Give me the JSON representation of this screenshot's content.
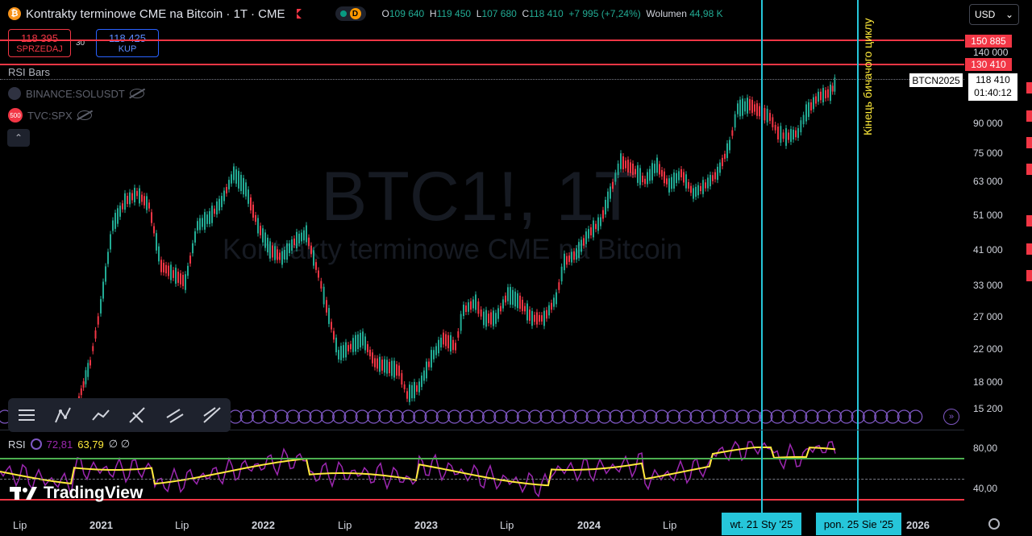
{
  "header": {
    "coin_icon": "bitcoin-icon",
    "title": "Kontrakty terminowe CME na Bitcoin · 1T · CME",
    "badge_d": "D",
    "ohlc": {
      "o_label": "O",
      "o_value": "109 640",
      "h_label": "H",
      "h_value": "119 450",
      "l_label": "L",
      "l_value": "107 680",
      "c_label": "C",
      "c_value": "118 410",
      "change": "+7 995 (+7,24%)",
      "volume_label": "Wolumen",
      "volume_value": "44,98 K"
    },
    "currency": "USD"
  },
  "trade": {
    "sell_price": "118 395",
    "sell_label": "SPRZEDAJ",
    "spread": "30",
    "buy_price": "118 425",
    "buy_label": "KUP"
  },
  "legend": {
    "indicator": "RSI Bars",
    "compare1": "BINANCE:SOLUSDT",
    "compare2_badge": "500",
    "compare2": "TVC:SPX"
  },
  "watermark": {
    "symbol": "BTC1!, 1T",
    "name": "Kontrakty terminowe CME na Bitcoin"
  },
  "price_axis": {
    "labels": [
      "140 000",
      "90 000",
      "75 000",
      "63 000",
      "51 000",
      "41 000",
      "33 000",
      "27 000",
      "22 000",
      "18 000",
      "15 200"
    ],
    "red_tags": [
      "150 885",
      "130 410"
    ],
    "symbol_tag": "BTCN2025",
    "price_tag": "118 410",
    "countdown": "01:40:12"
  },
  "annotation_vertical_text": "Кінець бичачого циклу",
  "rsi": {
    "label": "RSI",
    "value1": "72,81",
    "value2": "63,79",
    "extra": "∅ ∅",
    "axis_labels": [
      "80,00",
      "40,00"
    ]
  },
  "time_axis": {
    "labels": [
      {
        "text": "Lip",
        "bold": false
      },
      {
        "text": "2021",
        "bold": true
      },
      {
        "text": "Lip",
        "bold": false
      },
      {
        "text": "2022",
        "bold": true
      },
      {
        "text": "Lip",
        "bold": false
      },
      {
        "text": "2023",
        "bold": true
      },
      {
        "text": "Lip",
        "bold": false
      },
      {
        "text": "2024",
        "bold": true
      },
      {
        "text": "Lip",
        "bold": false
      },
      {
        "text": "2026",
        "bold": true
      }
    ],
    "date_tag1": "wt. 21 Sty '25",
    "date_tag2": "pon. 25 Sie '25"
  },
  "branding": "TradingView",
  "drawing_tools": [
    "lines-tool-icon",
    "pattern-tool-icon",
    "path-tool-icon",
    "fork-tool-icon",
    "channel-tool-icon",
    "trend-tool-icon"
  ],
  "colors": {
    "up": "#22ab94",
    "down": "#f23645",
    "cycle_line": "#26c6da",
    "rsi_line": "#9c27b0",
    "rsi_ma": "#ffeb3b"
  },
  "chart_data": {
    "type": "candlestick",
    "series": [
      {
        "name": "RSI",
        "values": [
          72.81
        ]
      },
      {
        "name": "RSI MA",
        "values": [
          63.79
        ]
      }
    ],
    "last": {
      "open": 109640,
      "high": 119450,
      "low": 107680,
      "close": 118410
    },
    "horizontal_levels": [
      150885,
      130410
    ],
    "vertical_markers": [
      "wt. 21 Sty '25",
      "pon. 25 Sie '25"
    ],
    "rsi_levels": [
      80,
      40
    ]
  }
}
